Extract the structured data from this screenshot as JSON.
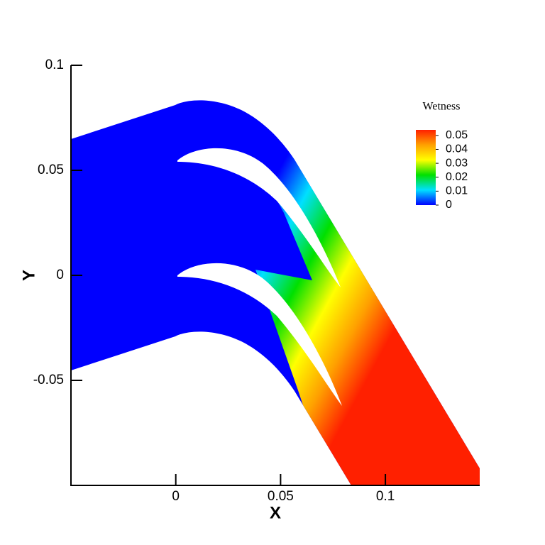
{
  "chart_data": {
    "type": "contour",
    "xlabel": "X",
    "ylabel": "Y",
    "xlim": [
      -0.05,
      0.145
    ],
    "ylim": [
      -0.1,
      0.1
    ],
    "xticks": [
      0,
      0.05,
      0.1
    ],
    "yticks": [
      -0.05,
      0,
      0.05,
      0.1
    ],
    "colorbar": {
      "title": "Wetness",
      "clim": [
        0,
        0.054
      ],
      "ticks": [
        0,
        0.01,
        0.02,
        0.03,
        0.04,
        0.05
      ],
      "colormap": [
        "#0000ff",
        "#00e0ff",
        "#00e000",
        "#ffff00",
        "#ffa000",
        "#ff2000"
      ]
    }
  }
}
